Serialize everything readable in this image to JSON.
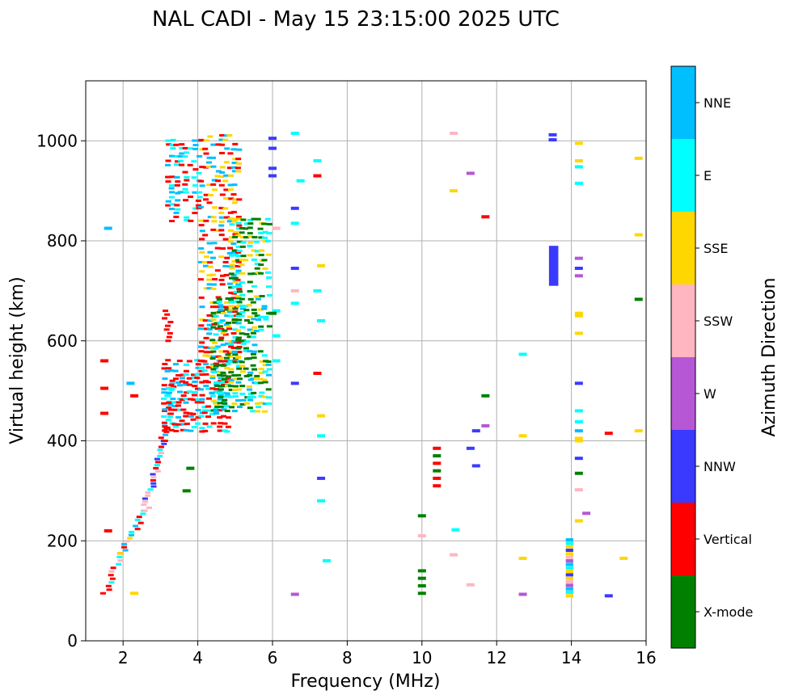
{
  "chart_data": {
    "type": "scatter",
    "title": "NAL CADI - May 15 23:15:00 2025 UTC",
    "xlabel": "Frequency (MHz)",
    "ylabel": "Virtual height (km)",
    "xlim": [
      1.0,
      16.0
    ],
    "ylim": [
      0,
      1120
    ],
    "xticks": [
      2,
      4,
      6,
      8,
      10,
      12,
      14,
      16
    ],
    "yticks": [
      0,
      200,
      400,
      600,
      800,
      1000
    ],
    "grid": true,
    "colorbar": {
      "title": "Azimuth Direction",
      "categories": [
        {
          "name": "X-mode",
          "color": "#008000"
        },
        {
          "name": "Vertical",
          "color": "#ff0000"
        },
        {
          "name": "NNW",
          "color": "#3a3aff"
        },
        {
          "name": "W",
          "color": "#b657d6"
        },
        {
          "name": "SSW",
          "color": "#ffb6c1"
        },
        {
          "name": "SSE",
          "color": "#ffd700"
        },
        {
          "name": "E",
          "color": "#00ffff"
        },
        {
          "name": "NNE",
          "color": "#00bfff"
        }
      ]
    },
    "traces": [
      {
        "from": [
          1.5,
          95
        ],
        "to": [
          1.95,
          175
        ],
        "cats": [
          "E",
          "NNE",
          "Vertical",
          "SSW"
        ],
        "step": 7
      },
      {
        "from": [
          1.95,
          175
        ],
        "to": [
          2.6,
          260
        ],
        "cats": [
          "SSW",
          "SSE",
          "Vertical",
          "E",
          "NNE"
        ],
        "step": 6
      },
      {
        "from": [
          2.6,
          260
        ],
        "to": [
          3.05,
          400
        ],
        "cats": [
          "Vertical",
          "SSW",
          "NNW",
          "E"
        ],
        "step": 6
      },
      {
        "from": [
          3.05,
          400
        ],
        "to": [
          3.35,
          520
        ],
        "cats": [
          "Vertical",
          "NNE",
          "E"
        ],
        "step": 6
      },
      {
        "from": [
          3.2,
          600
        ],
        "to": [
          3.2,
          660
        ],
        "cats": [
          "Vertical"
        ],
        "step": 8
      }
    ],
    "blocks": [
      {
        "x": [
          3.1,
          4.8
        ],
        "y": [
          420,
          560
        ],
        "cats": [
          "Vertical",
          "Vertical",
          "NNE",
          "E"
        ],
        "dx": 0.1,
        "dy": 7
      },
      {
        "x": [
          3.2,
          4.1
        ],
        "y": [
          840,
          1000
        ],
        "cats": [
          "Vertical",
          "NNE",
          "E"
        ],
        "dx": 0.12,
        "dy": 8
      },
      {
        "x": [
          4.1,
          5.2
        ],
        "y": [
          560,
          1010
        ],
        "cats": [
          "Vertical",
          "Vertical",
          "NNE",
          "SSE"
        ],
        "dx": 0.11,
        "dy": 9
      },
      {
        "x": [
          4.4,
          5.9
        ],
        "y": [
          460,
          690
        ],
        "cats": [
          "X-mode",
          "X-mode",
          "E",
          "NNE",
          "SSE"
        ],
        "dx": 0.1,
        "dy": 7
      },
      {
        "x": [
          4.9,
          5.9
        ],
        "y": [
          690,
          850
        ],
        "cats": [
          "X-mode",
          "E",
          "SSE"
        ],
        "dx": 0.1,
        "dy": 9
      }
    ],
    "points": [
      {
        "x": 6.0,
        "y": 1005,
        "c": "NNW"
      },
      {
        "x": 6.0,
        "y": 985,
        "c": "NNW"
      },
      {
        "x": 6.0,
        "y": 945,
        "c": "NNW"
      },
      {
        "x": 6.0,
        "y": 930,
        "c": "NNW"
      },
      {
        "x": 6.1,
        "y": 610,
        "c": "E"
      },
      {
        "x": 6.1,
        "y": 560,
        "c": "E"
      },
      {
        "x": 6.1,
        "y": 660,
        "c": "E"
      },
      {
        "x": 6.1,
        "y": 825,
        "c": "SSW"
      },
      {
        "x": 6.0,
        "y": 655,
        "c": "X-mode"
      },
      {
        "x": 6.6,
        "y": 1015,
        "c": "E"
      },
      {
        "x": 6.6,
        "y": 865,
        "c": "NNW"
      },
      {
        "x": 6.6,
        "y": 835,
        "c": "E"
      },
      {
        "x": 6.6,
        "y": 745,
        "c": "NNW"
      },
      {
        "x": 6.6,
        "y": 700,
        "c": "SSW"
      },
      {
        "x": 6.6,
        "y": 675,
        "c": "E"
      },
      {
        "x": 6.6,
        "y": 515,
        "c": "NNW"
      },
      {
        "x": 6.6,
        "y": 93,
        "c": "W"
      },
      {
        "x": 6.75,
        "y": 920,
        "c": "E"
      },
      {
        "x": 7.2,
        "y": 960,
        "c": "E"
      },
      {
        "x": 7.2,
        "y": 930,
        "c": "Vertical"
      },
      {
        "x": 7.3,
        "y": 750,
        "c": "SSE"
      },
      {
        "x": 7.2,
        "y": 700,
        "c": "E"
      },
      {
        "x": 7.3,
        "y": 640,
        "c": "E"
      },
      {
        "x": 7.2,
        "y": 535,
        "c": "Vertical"
      },
      {
        "x": 7.3,
        "y": 450,
        "c": "SSE"
      },
      {
        "x": 7.3,
        "y": 410,
        "c": "E"
      },
      {
        "x": 7.3,
        "y": 325,
        "c": "NNW"
      },
      {
        "x": 7.3,
        "y": 280,
        "c": "E"
      },
      {
        "x": 7.45,
        "y": 160,
        "c": "E"
      },
      {
        "x": 1.6,
        "y": 825,
        "c": "NNE"
      },
      {
        "x": 1.5,
        "y": 560,
        "c": "Vertical"
      },
      {
        "x": 1.5,
        "y": 505,
        "c": "Vertical"
      },
      {
        "x": 1.5,
        "y": 455,
        "c": "Vertical"
      },
      {
        "x": 1.6,
        "y": 220,
        "c": "Vertical"
      },
      {
        "x": 2.3,
        "y": 490,
        "c": "Vertical"
      },
      {
        "x": 2.2,
        "y": 515,
        "c": "NNE"
      },
      {
        "x": 2.3,
        "y": 95,
        "c": "SSE"
      },
      {
        "x": 3.8,
        "y": 345,
        "c": "X-mode"
      },
      {
        "x": 3.7,
        "y": 300,
        "c": "X-mode"
      },
      {
        "x": 10.0,
        "y": 250,
        "c": "X-mode"
      },
      {
        "x": 10.0,
        "y": 210,
        "c": "SSW"
      },
      {
        "x": 10.0,
        "y": 140,
        "c": "X-mode"
      },
      {
        "x": 10.0,
        "y": 125,
        "c": "X-mode"
      },
      {
        "x": 10.0,
        "y": 110,
        "c": "X-mode"
      },
      {
        "x": 10.0,
        "y": 95,
        "c": "X-mode"
      },
      {
        "x": 10.4,
        "y": 385,
        "c": "Vertical"
      },
      {
        "x": 10.4,
        "y": 370,
        "c": "X-mode"
      },
      {
        "x": 10.4,
        "y": 355,
        "c": "Vertical"
      },
      {
        "x": 10.4,
        "y": 340,
        "c": "X-mode"
      },
      {
        "x": 10.4,
        "y": 325,
        "c": "Vertical"
      },
      {
        "x": 10.4,
        "y": 310,
        "c": "Vertical"
      },
      {
        "x": 10.85,
        "y": 1015,
        "c": "SSW"
      },
      {
        "x": 10.85,
        "y": 900,
        "c": "SSE"
      },
      {
        "x": 10.9,
        "y": 222,
        "c": "E"
      },
      {
        "x": 10.85,
        "y": 172,
        "c": "SSW"
      },
      {
        "x": 11.3,
        "y": 935,
        "c": "W"
      },
      {
        "x": 11.3,
        "y": 385,
        "c": "NNW"
      },
      {
        "x": 11.45,
        "y": 420,
        "c": "NNW"
      },
      {
        "x": 11.45,
        "y": 350,
        "c": "NNW"
      },
      {
        "x": 11.3,
        "y": 112,
        "c": "SSW"
      },
      {
        "x": 11.7,
        "y": 848,
        "c": "Vertical"
      },
      {
        "x": 11.7,
        "y": 490,
        "c": "X-mode"
      },
      {
        "x": 11.7,
        "y": 430,
        "c": "W"
      },
      {
        "x": 12.7,
        "y": 573,
        "c": "E"
      },
      {
        "x": 12.7,
        "y": 410,
        "c": "SSE"
      },
      {
        "x": 12.7,
        "y": 165,
        "c": "SSE"
      },
      {
        "x": 12.7,
        "y": 93,
        "c": "W"
      },
      {
        "x": 13.5,
        "y": 1012,
        "c": "NNW"
      },
      {
        "x": 13.5,
        "y": 1002,
        "c": "NNW"
      },
      {
        "x": 14.2,
        "y": 995,
        "c": "SSE"
      },
      {
        "x": 14.2,
        "y": 960,
        "c": "SSE"
      },
      {
        "x": 14.2,
        "y": 948,
        "c": "E"
      },
      {
        "x": 14.2,
        "y": 915,
        "c": "E"
      },
      {
        "x": 14.2,
        "y": 765,
        "c": "W"
      },
      {
        "x": 14.2,
        "y": 745,
        "c": "NNW"
      },
      {
        "x": 14.2,
        "y": 730,
        "c": "W"
      },
      {
        "x": 14.2,
        "y": 655,
        "c": "SSE"
      },
      {
        "x": 14.2,
        "y": 650,
        "c": "SSE"
      },
      {
        "x": 14.2,
        "y": 615,
        "c": "SSE"
      },
      {
        "x": 14.2,
        "y": 515,
        "c": "NNW"
      },
      {
        "x": 14.2,
        "y": 460,
        "c": "E"
      },
      {
        "x": 14.2,
        "y": 438,
        "c": "E"
      },
      {
        "x": 14.2,
        "y": 420,
        "c": "NNE"
      },
      {
        "x": 14.2,
        "y": 405,
        "c": "SSE"
      },
      {
        "x": 14.2,
        "y": 400,
        "c": "SSE"
      },
      {
        "x": 14.2,
        "y": 365,
        "c": "NNW"
      },
      {
        "x": 14.2,
        "y": 335,
        "c": "X-mode"
      },
      {
        "x": 14.2,
        "y": 302,
        "c": "SSW"
      },
      {
        "x": 14.2,
        "y": 240,
        "c": "SSE"
      },
      {
        "x": 14.4,
        "y": 255,
        "c": "W"
      },
      {
        "x": 15.0,
        "y": 415,
        "c": "Vertical"
      },
      {
        "x": 15.0,
        "y": 90,
        "c": "NNW"
      },
      {
        "x": 15.4,
        "y": 165,
        "c": "SSE"
      },
      {
        "x": 15.8,
        "y": 965,
        "c": "SSE"
      },
      {
        "x": 15.8,
        "y": 812,
        "c": "SSE"
      },
      {
        "x": 15.8,
        "y": 683,
        "c": "X-mode"
      },
      {
        "x": 15.8,
        "y": 420,
        "c": "SSE"
      }
    ],
    "columns": [
      {
        "x": [
          13.4,
          13.65
        ],
        "y": [
          710,
          790
        ],
        "c": "NNW"
      },
      {
        "x": [
          13.85,
          14.05
        ],
        "y": [
          90,
          205
        ],
        "cats": [
          "SSE",
          "E",
          "NNE",
          "W",
          "SSW",
          "SSE",
          "NNW"
        ],
        "dy": 7
      }
    ]
  }
}
